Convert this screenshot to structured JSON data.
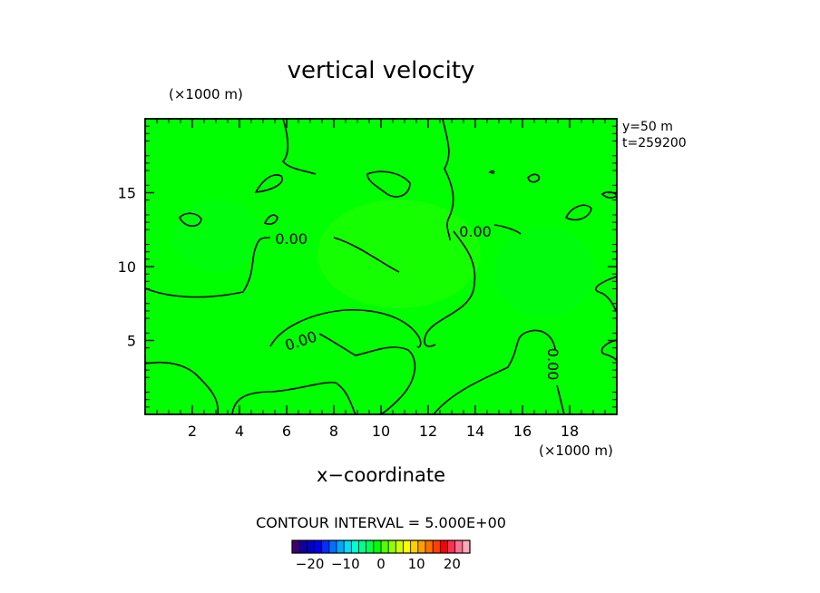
{
  "chart_data": {
    "type": "heatmap",
    "title": "vertical velocity",
    "xlabel": "x−coordinate",
    "x_unit": "(×1000 m)",
    "y_unit": "(×1000 m)",
    "info_lines": [
      "y=50  m",
      "t=259200"
    ],
    "x_range": [
      0,
      20
    ],
    "y_range": [
      0,
      20
    ],
    "xticks": [
      2,
      4,
      6,
      8,
      10,
      12,
      14,
      16,
      18
    ],
    "yticks": [
      5,
      10,
      15
    ],
    "fill_color": "#00ff00",
    "contour_interval_text": "CONTOUR INTERVAL = 5.000E+00",
    "contour_labels": [
      {
        "text": "0.00",
        "x": 6.2,
        "y": 11.9,
        "rot": 0
      },
      {
        "text": "0.00",
        "x": 14.0,
        "y": 12.4,
        "rot": 0
      },
      {
        "text": "0.00",
        "x": 6.6,
        "y": 5.0,
        "rot": -18
      },
      {
        "text": "0.00",
        "x": 17.3,
        "y": 3.4,
        "rot": 90
      }
    ],
    "colorbar": {
      "min": -25,
      "max": 25,
      "tick_labels": [
        "−20",
        "−10",
        "0",
        "10",
        "20"
      ],
      "tick_values": [
        -20,
        -10,
        0,
        10,
        20
      ],
      "colors": [
        "#400070",
        "#1400a0",
        "#0000c8",
        "#0000f0",
        "#0030ff",
        "#0070ff",
        "#00a8ff",
        "#00dcff",
        "#00ffd0",
        "#00ff90",
        "#00ff50",
        "#00ff00",
        "#50ff00",
        "#90ff00",
        "#d0ff00",
        "#ffff00",
        "#ffd000",
        "#ffa000",
        "#ff7000",
        "#ff4000",
        "#ff0000",
        "#ff3050",
        "#ff7090",
        "#ffa8b8"
      ]
    }
  }
}
